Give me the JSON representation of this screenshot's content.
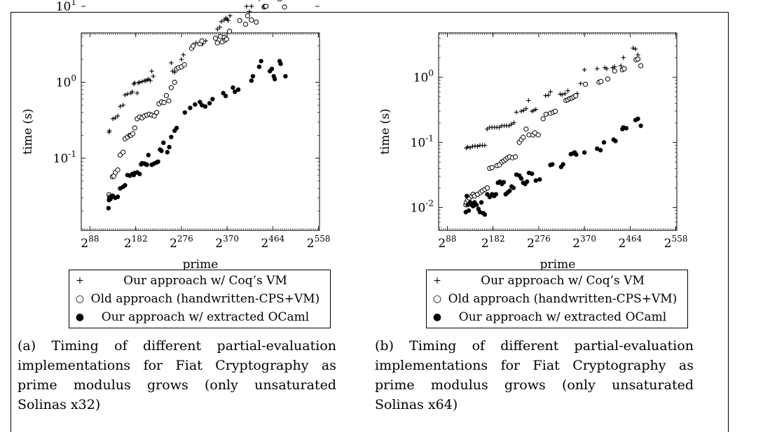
{
  "panels": [
    {
      "caption": "(a) Timing of different partial-evaluation implementations for Fiat Cryptography as prime modulus grows (only unsaturated Solinas x32)",
      "legend": [
        {
          "marker": "+",
          "label": "Our approach w/ Coq’s VM"
        },
        {
          "marker": "○",
          "label": "Old approach (handwritten-CPS+VM)"
        },
        {
          "marker": "●",
          "label": "Our approach w/ extracted OCaml"
        }
      ]
    },
    {
      "caption": "(b) Timing of different partial-evaluation implementations for Fiat Cryptography as prime modulus grows (only unsaturated Solinas x64)",
      "legend": [
        {
          "marker": "+",
          "label": "Our approach w/ Coq’s VM"
        },
        {
          "marker": "○",
          "label": "Old approach (handwritten-CPS+VM)"
        },
        {
          "marker": "●",
          "label": "Our approach w/ extracted OCaml"
        }
      ]
    }
  ],
  "chart_data": [
    {
      "type": "scatter",
      "xlabel": "prime",
      "ylabel": "time (s)",
      "xscale": "log2",
      "yscale": "log10",
      "x_ticks": [
        88,
        182,
        276,
        370,
        464,
        558
      ],
      "x_tick_labels": [
        "2^88",
        "2^182",
        "2^276",
        "2^370",
        "2^464",
        "2^558"
      ],
      "y_ticks": [
        -1,
        0,
        1
      ],
      "y_tick_labels": [
        "10^-1",
        "10^0",
        "10^1"
      ],
      "xlim_log2": [
        70,
        560
      ],
      "ylim_log10": [
        -1.95,
        0.65
      ],
      "legend_position": "below",
      "series": [
        {
          "name": "Our approach w/ Coq’s VM",
          "marker": "plus",
          "x_log2": [
            127,
            128,
            135,
            140,
            145,
            150,
            156,
            160,
            165,
            172,
            175,
            178,
            180,
            185,
            187,
            190,
            195,
            200,
            203,
            206,
            209,
            212,
            215,
            218,
            255,
            258,
            262,
            266,
            276,
            280,
            300,
            306,
            320,
            326,
            350,
            355,
            358,
            364,
            367,
            370,
            372,
            376,
            410,
            416,
            420,
            436,
            438,
            454,
            460,
            468,
            478,
            480,
            482,
            490
          ],
          "y": [
            0.22,
            0.23,
            0.33,
            0.34,
            0.36,
            0.48,
            0.5,
            0.68,
            0.7,
            0.72,
            0.75,
            0.95,
            0.98,
            0.72,
            0.98,
            1.0,
            1.02,
            1.05,
            1.05,
            1.08,
            1.1,
            1.05,
            1.4,
            1.2,
            1.8,
            1.4,
            1.35,
            1.5,
            2.0,
            2.3,
            3.1,
            3.3,
            3.2,
            3.5,
            5.0,
            5.3,
            6.3,
            6.6,
            7.0,
            6.8,
            6.5,
            7.5,
            10.0,
            8.5,
            10.0,
            12.5,
            13.0,
            15.0,
            15.0,
            16.0,
            22.0,
            20.0,
            18.0,
            15.0
          ]
        },
        {
          "name": "Old approach (handwritten-CPS+VM)",
          "marker": "circle",
          "x_log2": [
            127,
            129,
            134,
            137,
            140,
            145,
            150,
            156,
            160,
            165,
            170,
            172,
            176,
            180,
            185,
            190,
            195,
            200,
            205,
            210,
            215,
            220,
            225,
            230,
            235,
            240,
            245,
            250,
            255,
            262,
            266,
            270,
            276,
            282,
            297,
            300,
            314,
            318,
            346,
            350,
            356,
            360,
            364,
            366,
            369,
            375,
            396,
            408,
            412,
            420,
            430,
            446,
            448,
            450,
            473,
            476,
            478,
            488
          ],
          "y": [
            0.033,
            0.031,
            0.057,
            0.058,
            0.065,
            0.07,
            0.11,
            0.12,
            0.18,
            0.19,
            0.2,
            0.2,
            0.21,
            0.25,
            0.33,
            0.35,
            0.34,
            0.36,
            0.37,
            0.38,
            0.37,
            0.36,
            0.4,
            0.52,
            0.55,
            0.54,
            0.67,
            0.57,
            0.85,
            1.0,
            1.5,
            1.55,
            1.6,
            1.7,
            2.8,
            3.0,
            3.2,
            3.5,
            3.8,
            3.3,
            4.0,
            3.4,
            3.9,
            3.6,
            3.7,
            4.7,
            6.5,
            5.8,
            7.5,
            6.6,
            6.2,
            9.8,
            10.0,
            10.0,
            14.0,
            15.0,
            12.5,
            9.8
          ]
        },
        {
          "name": "Our approach w/ extracted OCaml",
          "marker": "dot",
          "x_log2": [
            126,
            127,
            128,
            130,
            132,
            135,
            140,
            145,
            150,
            156,
            160,
            165,
            170,
            175,
            178,
            180,
            185,
            190,
            193,
            195,
            200,
            203,
            205,
            208,
            215,
            220,
            225,
            228,
            232,
            235,
            239,
            247,
            251,
            255,
            262,
            266,
            283,
            294,
            304,
            314,
            318,
            325,
            334,
            340,
            362,
            367,
            382,
            386,
            393,
            420,
            423,
            436,
            440,
            458,
            462,
            466,
            468,
            478,
            480,
            490
          ],
          "y": [
            0.022,
            0.028,
            0.03,
            0.029,
            0.031,
            0.032,
            0.03,
            0.031,
            0.04,
            0.042,
            0.044,
            0.06,
            0.059,
            0.062,
            0.06,
            0.064,
            0.065,
            0.062,
            0.083,
            0.086,
            0.085,
            0.083,
            0.082,
            0.11,
            0.082,
            0.085,
            0.088,
            0.09,
            0.13,
            0.125,
            0.16,
            0.12,
            0.14,
            0.19,
            0.23,
            0.25,
            0.4,
            0.46,
            0.51,
            0.55,
            0.5,
            0.48,
            0.53,
            0.6,
            0.72,
            0.66,
            0.85,
            0.75,
            0.8,
            1.05,
            1.2,
            1.6,
            1.9,
            1.4,
            1.5,
            1.2,
            1.1,
            1.9,
            1.75,
            1.2
          ]
        }
      ]
    },
    {
      "type": "scatter",
      "xlabel": "prime",
      "ylabel": "time (s)",
      "xscale": "log2",
      "yscale": "log10",
      "x_ticks": [
        88,
        182,
        276,
        370,
        464,
        558
      ],
      "x_tick_labels": [
        "2^88",
        "2^182",
        "2^276",
        "2^370",
        "2^464",
        "2^558"
      ],
      "y_ticks": [
        -2,
        -1,
        0
      ],
      "y_tick_labels": [
        "10^-2",
        "10^-1",
        "10^0"
      ],
      "xlim_log2": [
        70,
        560
      ],
      "ylim_log10": [
        -2.35,
        0.68
      ],
      "legend_position": "below",
      "series": [
        {
          "name": "Our approach w/ Coq’s VM",
          "marker": "plus",
          "x_log2": [
            127,
            130,
            135,
            140,
            145,
            150,
            155,
            160,
            165,
            170,
            175,
            180,
            185,
            190,
            195,
            200,
            205,
            210,
            215,
            220,
            225,
            230,
            240,
            245,
            250,
            255,
            262,
            266,
            270,
            290,
            296,
            300,
            320,
            324,
            330,
            336,
            355,
            362,
            370,
            396,
            412,
            416,
            428,
            432,
            445,
            450,
            470,
            475,
            480
          ],
          "y": [
            0.082,
            0.085,
            0.083,
            0.087,
            0.088,
            0.087,
            0.09,
            0.09,
            0.09,
            0.16,
            0.17,
            0.17,
            0.17,
            0.17,
            0.17,
            0.18,
            0.18,
            0.18,
            0.18,
            0.19,
            0.2,
            0.29,
            0.3,
            0.31,
            0.33,
            0.44,
            0.3,
            0.31,
            0.32,
            0.52,
            0.53,
            0.6,
            0.55,
            0.54,
            0.56,
            0.62,
            0.56,
            0.8,
            1.3,
            1.35,
            1.4,
            1.35,
            1.4,
            1.45,
            1.5,
            2.0,
            2.8,
            2.7,
            2.2
          ]
        },
        {
          "name": "Old approach (handwritten-CPS+VM)",
          "marker": "circle",
          "x_log2": [
            126,
            127,
            130,
            133,
            138,
            141,
            144,
            150,
            156,
            160,
            165,
            170,
            175,
            180,
            190,
            195,
            200,
            204,
            208,
            212,
            216,
            222,
            228,
            236,
            240,
            244,
            250,
            256,
            264,
            268,
            275,
            285,
            291,
            300,
            306,
            310,
            332,
            336,
            340,
            344,
            348,
            352,
            372,
            400,
            404,
            418,
            432,
            448,
            452,
            476,
            480,
            486
          ],
          "y": [
            0.011,
            0.012,
            0.013,
            0.014,
            0.015,
            0.016,
            0.015,
            0.016,
            0.017,
            0.018,
            0.019,
            0.02,
            0.04,
            0.041,
            0.044,
            0.045,
            0.05,
            0.052,
            0.055,
            0.058,
            0.06,
            0.058,
            0.06,
            0.1,
            0.11,
            0.12,
            0.16,
            0.13,
            0.13,
            0.14,
            0.13,
            0.23,
            0.27,
            0.28,
            0.29,
            0.3,
            0.44,
            0.45,
            0.47,
            0.48,
            0.5,
            0.52,
            0.78,
            0.84,
            0.86,
            0.94,
            1.25,
            1.3,
            1.35,
            1.85,
            1.9,
            1.5
          ]
        },
        {
          "name": "Our approach w/ extracted OCaml",
          "marker": "dot",
          "x_log2": [
            126,
            128,
            130,
            132,
            135,
            138,
            141,
            144,
            148,
            152,
            155,
            158,
            162,
            165,
            170,
            175,
            180,
            184,
            188,
            192,
            196,
            200,
            204,
            208,
            212,
            216,
            220,
            224,
            230,
            236,
            240,
            244,
            248,
            252,
            256,
            262,
            270,
            278,
            300,
            304,
            322,
            326,
            342,
            347,
            350,
            353,
            370,
            396,
            403,
            410,
            430,
            434,
            448,
            450,
            456,
            475,
            480,
            486
          ],
          "y": [
            0.0085,
            0.015,
            0.011,
            0.009,
            0.012,
            0.011,
            0.0105,
            0.012,
            0.011,
            0.0095,
            0.0085,
            0.012,
            0.0082,
            0.0078,
            0.016,
            0.0145,
            0.016,
            0.015,
            0.016,
            0.024,
            0.025,
            0.023,
            0.0245,
            0.016,
            0.017,
            0.018,
            0.021,
            0.02,
            0.032,
            0.031,
            0.028,
            0.024,
            0.023,
            0.025,
            0.034,
            0.033,
            0.026,
            0.027,
            0.045,
            0.046,
            0.042,
            0.046,
            0.066,
            0.068,
            0.07,
            0.065,
            0.07,
            0.08,
            0.076,
            0.1,
            0.11,
            0.105,
            0.16,
            0.17,
            0.165,
            0.22,
            0.23,
            0.18
          ]
        }
      ]
    }
  ]
}
